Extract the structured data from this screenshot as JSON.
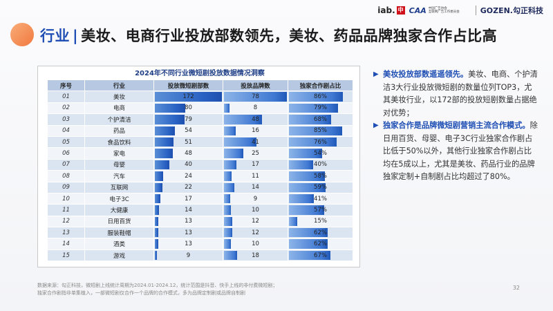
{
  "logos": {
    "iab": "iab.",
    "iab_mark": "中国",
    "cca": "CAA",
    "cca_line1": "中国广告协会",
    "cca_line2": "互联网广告工作委员会",
    "gozen": "GOZEN.勾正科技"
  },
  "title": {
    "prefix": "行业",
    "text": "美妆、电商行业投放部数领先，美妆、药品品牌独家合作占比高"
  },
  "table": {
    "title": "2024年不同行业微短剧投放数据情况洞察",
    "headers": [
      "序号",
      "行业",
      "投放微短剧部数",
      "投放品牌数",
      "独家合作剧占比"
    ],
    "rows": [
      {
        "seq": "01",
        "industry": "美妆",
        "dramas": 172,
        "brands": 78,
        "exclusive": "86%"
      },
      {
        "seq": "02",
        "industry": "电商",
        "dramas": 80,
        "brands": 8,
        "exclusive": "79%"
      },
      {
        "seq": "03",
        "industry": "个护清洁",
        "dramas": 79,
        "brands": 48,
        "exclusive": "68%"
      },
      {
        "seq": "04",
        "industry": "药品",
        "dramas": 54,
        "brands": 16,
        "exclusive": "85%"
      },
      {
        "seq": "05",
        "industry": "食品饮料",
        "dramas": 51,
        "brands": 41,
        "exclusive": "76%"
      },
      {
        "seq": "06",
        "industry": "家电",
        "dramas": 48,
        "brands": 25,
        "exclusive": "54%"
      },
      {
        "seq": "07",
        "industry": "母婴",
        "dramas": 40,
        "brands": 17,
        "exclusive": "40%"
      },
      {
        "seq": "08",
        "industry": "汽车",
        "dramas": 24,
        "brands": 11,
        "exclusive": "58%"
      },
      {
        "seq": "09",
        "industry": "互联网",
        "dramas": 22,
        "brands": 14,
        "exclusive": "59%"
      },
      {
        "seq": "10",
        "industry": "电子3C",
        "dramas": 17,
        "brands": 9,
        "exclusive": "41%"
      },
      {
        "seq": "11",
        "industry": "大健康",
        "dramas": 14,
        "brands": 10,
        "exclusive": "57%"
      },
      {
        "seq": "12",
        "industry": "日用百货",
        "dramas": 13,
        "brands": 12,
        "exclusive": "15%"
      },
      {
        "seq": "13",
        "industry": "服装鞋帽",
        "dramas": 13,
        "brands": 12,
        "exclusive": "62%"
      },
      {
        "seq": "14",
        "industry": "酒类",
        "dramas": 13,
        "brands": 10,
        "exclusive": "62%"
      },
      {
        "seq": "15",
        "industry": "游戏",
        "dramas": 9,
        "brands": 18,
        "exclusive": "67%"
      }
    ]
  },
  "notes": [
    {
      "highlight": "美妆投放部数遥遥领先。",
      "text": "美妆、电商、个护清洁3大行业投放微短剧的数量位列TOP3，尤其美妆行业，以172部的投放短剧数量占据绝对优势；"
    },
    {
      "highlight": "独家合作是品牌微短剧营销主流合作模式。",
      "text": "除日用百货、母婴、电子3C行业独家合作剧占比低于50%以外，其他行业独家合作剧占比均在5成以上，尤其是美妆、药品行业的品牌独家定制+自制剧占比均超过了80%。"
    }
  ],
  "footer": {
    "line1": "数据来源：勾正科技，微短剧上线统计周期为2024.01-2024.12，统计范围是抖音、快手上线的非付费微短剧；",
    "line2": "独家合作剧指非单集植入，一部微短剧仅合作一个品牌的合作模式，多为品牌定制剧或品牌自制剧"
  },
  "page_number": "32",
  "colors": {
    "accent": "#1f4fb4",
    "bar": "#2a63c4",
    "header_row": "#b7c9e2",
    "orange_circle": "#f06a2a"
  }
}
